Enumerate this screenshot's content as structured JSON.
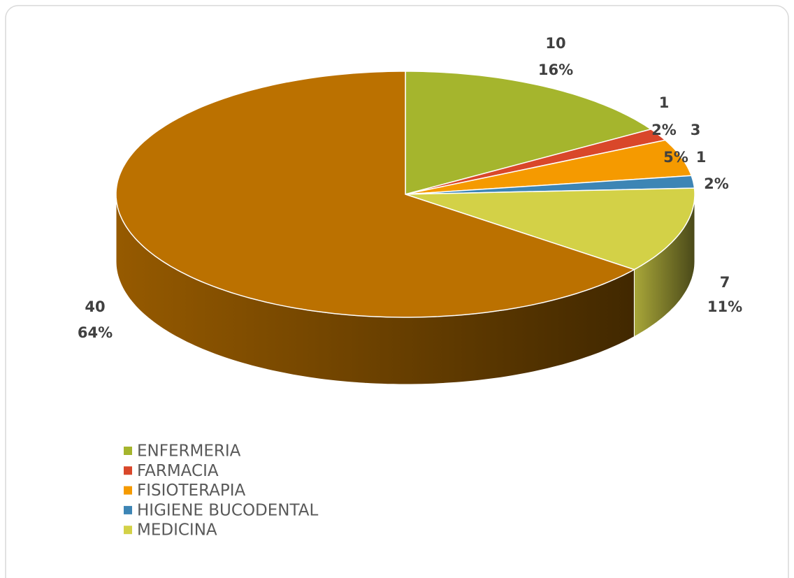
{
  "chart_data": {
    "type": "pie3d",
    "categories": [
      "ENFERMERIA",
      "FARMACIA",
      "FISIOTERAPIA",
      "HIGIENE BUCODENTAL",
      "MEDICINA",
      null
    ],
    "values": [
      10,
      1,
      3,
      1,
      7,
      40
    ],
    "percent_labels": [
      "16%",
      "2%",
      "5%",
      "2%",
      "11%",
      "64%"
    ],
    "colors": [
      "#a5b52d",
      "#d9472a",
      "#f59a00",
      "#3d85b5",
      "#d3d147",
      "#bb7100"
    ],
    "legend": "bottom-left"
  }
}
